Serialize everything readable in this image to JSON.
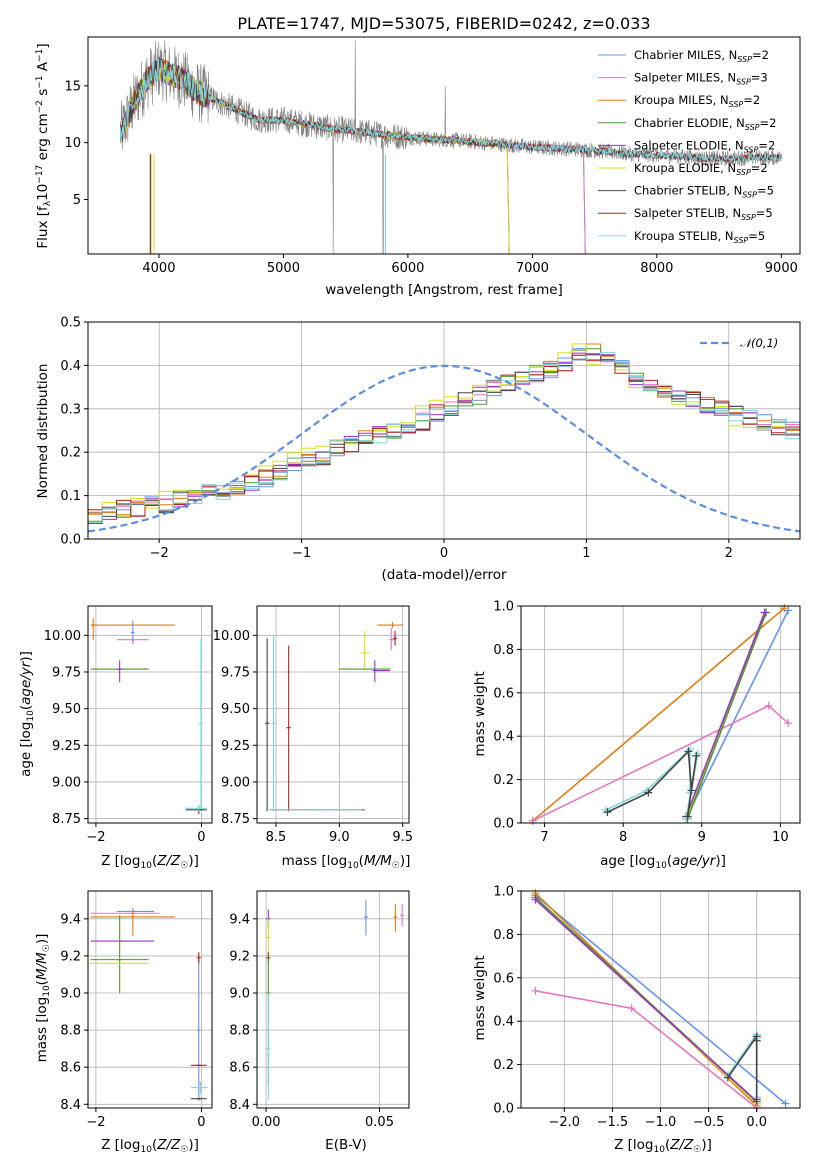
{
  "title": "PLATE=1747, MJD=53075, FIBERID=0242, z=0.033",
  "colors": {
    "chabrier_miles": "#6495ed",
    "salpeter_miles": "#e377c2",
    "kroupa_miles": "#e07b10",
    "chabrier_elodie": "#4e9a2c",
    "salpeter_elodie": "#9932cc",
    "kroupa_elodie": "#d4e21d",
    "chabrier_stelib": "#444444",
    "salpeter_stelib": "#b22222",
    "kroupa_stelib": "#7fd8dc",
    "data_gray": "#808080",
    "normal": "#5b8ee0"
  },
  "legend_main": [
    {
      "name": "Chabrier MILES",
      "n": "2",
      "color_key": "chabrier_miles"
    },
    {
      "name": "Salpeter MILES",
      "n": "3",
      "color_key": "salpeter_miles"
    },
    {
      "name": "Kroupa MILES",
      "n": "2",
      "color_key": "kroupa_miles"
    },
    {
      "name": "Chabrier ELODIE",
      "n": "2",
      "color_key": "chabrier_elodie"
    },
    {
      "name": "Salpeter ELODIE",
      "n": "2",
      "color_key": "salpeter_elodie"
    },
    {
      "name": "Kroupa ELODIE",
      "n": "2",
      "color_key": "kroupa_elodie"
    },
    {
      "name": "Chabrier STELIB",
      "n": "5",
      "color_key": "chabrier_stelib"
    },
    {
      "name": "Salpeter STELIB",
      "n": "5",
      "color_key": "salpeter_stelib"
    },
    {
      "name": "Kroupa STELIB",
      "n": "5",
      "color_key": "kroupa_stelib"
    }
  ],
  "chart_data": [
    {
      "id": "spectrum",
      "type": "line",
      "xlabel": "wavelength [Angstrom, rest frame]",
      "ylabel": "Flux [f_λ 10^-17 erg cm^-2 s^-1 A^-1]",
      "xlim": [
        3430,
        9150
      ],
      "ylim": [
        0.2,
        19.3
      ],
      "xticks": [
        4000,
        5000,
        6000,
        7000,
        8000,
        9000
      ],
      "yticks": [
        5,
        10,
        15
      ],
      "legend": "top-right",
      "data_continuum": {
        "x": [
          3700,
          3800,
          3900,
          4000,
          4100,
          4200,
          4300,
          4400,
          4600,
          4800,
          5000,
          5200,
          5400,
          5600,
          5800,
          6000,
          6200,
          6400,
          6600,
          6800,
          7000,
          7200,
          7400,
          7600,
          7800,
          8000,
          8200,
          8400,
          8600,
          8800,
          9000
        ],
        "y": [
          11.0,
          13.5,
          15.5,
          16.5,
          16.0,
          15.5,
          14.5,
          14.0,
          13.0,
          12.0,
          12.0,
          11.6,
          11.2,
          11.0,
          10.7,
          10.5,
          10.3,
          10.2,
          10.0,
          9.8,
          9.6,
          9.5,
          9.4,
          9.2,
          9.0,
          8.9,
          8.8,
          8.6,
          8.6,
          8.7,
          8.7
        ]
      },
      "model_end_wavelength": {
        "miles": 7410,
        "elodie": 6800,
        "stelib": 9000
      }
    },
    {
      "id": "residuals",
      "type": "histogram",
      "xlabel": "(data-model)/error",
      "ylabel": "Normed distribution",
      "xlim": [
        -2.5,
        2.5
      ],
      "ylim": [
        0,
        0.5
      ],
      "xticks": [
        -2,
        -1,
        0,
        1,
        2
      ],
      "yticks": [
        0.0,
        0.1,
        0.2,
        0.3,
        0.4,
        0.5
      ],
      "bin_width": 0.1,
      "bin_start": -2.5,
      "grid": true,
      "normal_label": "𝒩(0,1)",
      "base_hist": [
        0.05,
        0.06,
        0.07,
        0.07,
        0.08,
        0.08,
        0.09,
        0.1,
        0.11,
        0.11,
        0.12,
        0.13,
        0.14,
        0.15,
        0.17,
        0.18,
        0.19,
        0.21,
        0.22,
        0.23,
        0.24,
        0.25,
        0.26,
        0.27,
        0.29,
        0.3,
        0.32,
        0.33,
        0.35,
        0.36,
        0.37,
        0.38,
        0.39,
        0.4,
        0.42,
        0.43,
        0.42,
        0.4,
        0.37,
        0.35,
        0.34,
        0.33,
        0.32,
        0.31,
        0.3,
        0.29,
        0.28,
        0.27,
        0.26,
        0.25,
        0.24,
        0.22,
        0.21,
        0.2,
        0.18,
        0.17,
        0.16,
        0.15,
        0.13,
        0.12,
        0.11,
        0.1,
        0.09,
        0.08,
        0.07,
        0.06,
        0.05,
        0.05,
        0.04,
        0.04,
        0.03,
        0.03,
        0.03,
        0.03,
        0.03
      ]
    },
    {
      "id": "age_vs_Z",
      "type": "errorbar",
      "xlabel": "Z [log10(Z/Z☉)]",
      "ylabel": "age [log10(age/yr)]",
      "xlim": [
        -2.15,
        0.2
      ],
      "ylim": [
        8.72,
        10.2
      ],
      "xticks": [
        -2,
        0
      ],
      "yticks": [
        8.75,
        9.0,
        9.25,
        9.5,
        9.75,
        10.0
      ],
      "points": [
        {
          "c": "kroupa_miles",
          "x": -2.05,
          "xlo": -2.1,
          "xhi": -0.5,
          "y": 10.07,
          "ylo": 9.97,
          "yhi": 10.12
        },
        {
          "c": "salpeter_miles",
          "x": -1.3,
          "xlo": -1.6,
          "xhi": -1.0,
          "y": 9.97,
          "ylo": 9.95,
          "yhi": 9.99
        },
        {
          "c": "chabrier_miles",
          "x": -1.3,
          "xlo": -1.3,
          "xhi": -1.3,
          "y": 10.02,
          "ylo": 9.94,
          "yhi": 10.1
        },
        {
          "c": "kroupa_elodie",
          "x": -1.5,
          "xlo": -2.1,
          "xhi": -1.0,
          "y": 9.77,
          "ylo": 9.77,
          "yhi": 9.77
        },
        {
          "c": "chabrier_elodie",
          "x": -1.55,
          "xlo": -2.1,
          "xhi": -1.0,
          "y": 9.77,
          "ylo": 9.77,
          "yhi": 9.77
        },
        {
          "c": "salpeter_elodie",
          "x": -1.55,
          "xlo": -1.6,
          "xhi": -1.5,
          "y": 9.77,
          "ylo": 9.68,
          "yhi": 9.83
        },
        {
          "c": "kroupa_stelib",
          "x": -0.01,
          "xlo": -0.01,
          "xhi": -0.01,
          "y": 9.4,
          "ylo": 8.8,
          "yhi": 9.98
        },
        {
          "c": "chabrier_stelib",
          "x": -0.05,
          "xlo": -0.3,
          "xhi": 0.1,
          "y": 8.81,
          "ylo": 8.78,
          "yhi": 8.84
        },
        {
          "c": "kroupa_stelib",
          "x": -0.05,
          "xlo": -0.3,
          "xhi": 0.1,
          "y": 8.82,
          "ylo": 8.8,
          "yhi": 8.84
        }
      ]
    },
    {
      "id": "age_vs_mass",
      "type": "errorbar",
      "xlabel": "mass [log10(M/M☉)]",
      "ylabel": "",
      "xlim": [
        8.35,
        9.55
      ],
      "ylim": [
        8.72,
        10.2
      ],
      "xticks": [
        8.5,
        9.0,
        9.5
      ],
      "yticks": [
        8.75,
        9.0,
        9.25,
        9.5,
        9.75,
        10.0
      ],
      "points": [
        {
          "c": "chabrier_stelib",
          "x": 8.43,
          "xlo": 8.43,
          "xhi": 8.43,
          "y": 9.4,
          "ylo": 8.8,
          "yhi": 9.98
        },
        {
          "c": "kroupa_stelib",
          "x": 8.48,
          "xlo": 8.48,
          "xhi": 8.48,
          "y": 9.4,
          "ylo": 8.8,
          "yhi": 10.0
        },
        {
          "c": "salpeter_stelib",
          "x": 8.6,
          "xlo": 8.6,
          "xhi": 8.6,
          "y": 9.37,
          "ylo": 8.8,
          "yhi": 9.93
        },
        {
          "c": "salpeter_stelib",
          "x": 8.82,
          "xlo": 8.45,
          "xhi": 9.2,
          "y": 8.81,
          "ylo": 8.81,
          "yhi": 8.81
        },
        {
          "c": "kroupa_stelib",
          "x": 8.82,
          "xlo": 8.45,
          "xhi": 9.18,
          "y": 8.81,
          "ylo": 8.81,
          "yhi": 8.81
        },
        {
          "c": "chabrier_elodie",
          "x": 9.2,
          "xlo": 9.0,
          "xhi": 9.4,
          "y": 9.77,
          "ylo": 9.77,
          "yhi": 9.77
        },
        {
          "c": "kroupa_elodie",
          "x": 9.2,
          "xlo": 9.17,
          "xhi": 9.24,
          "y": 9.88,
          "ylo": 9.76,
          "yhi": 10.03
        },
        {
          "c": "salpeter_elodie",
          "x": 9.28,
          "xlo": 9.27,
          "xhi": 9.4,
          "y": 9.76,
          "ylo": 9.68,
          "yhi": 9.83
        },
        {
          "c": "kroupa_miles",
          "x": 9.42,
          "xlo": 9.3,
          "xhi": 9.5,
          "y": 10.07,
          "ylo": 10.05,
          "yhi": 10.09
        },
        {
          "c": "salpeter_miles",
          "x": 9.41,
          "xlo": 9.4,
          "xhi": 9.45,
          "y": 9.97,
          "ylo": 9.9,
          "yhi": 10.05
        },
        {
          "c": "salpeter_stelib",
          "x": 9.44,
          "xlo": 9.44,
          "xhi": 9.44,
          "y": 9.98,
          "ylo": 9.93,
          "yhi": 10.03
        }
      ]
    },
    {
      "id": "mass_vs_Z",
      "type": "errorbar",
      "xlabel": "Z [log10(Z/Z☉)]",
      "ylabel": "mass [log10(M/M☉)]",
      "xlim": [
        -2.15,
        0.2
      ],
      "ylim": [
        8.38,
        9.55
      ],
      "xticks": [
        -2,
        0
      ],
      "yticks": [
        8.4,
        8.6,
        8.8,
        9.0,
        9.2,
        9.4
      ],
      "points": [
        {
          "c": "kroupa_miles",
          "x": -1.3,
          "xlo": -2.1,
          "xhi": -0.5,
          "y": 9.41,
          "ylo": 9.31,
          "yhi": 9.46
        },
        {
          "c": "salpeter_miles",
          "x": -1.3,
          "xlo": -2.1,
          "xhi": -0.8,
          "y": 9.43,
          "ylo": 9.43,
          "yhi": 9.43
        },
        {
          "c": "chabrier_miles",
          "x": -1.3,
          "xlo": -1.6,
          "xhi": -0.9,
          "y": 9.44,
          "ylo": 9.44,
          "yhi": 9.44
        },
        {
          "c": "salpeter_elodie",
          "x": -1.5,
          "xlo": -2.1,
          "xhi": -0.9,
          "y": 9.28,
          "ylo": 9.28,
          "yhi": 9.28
        },
        {
          "c": "chabrier_elodie",
          "x": -1.55,
          "xlo": -2.1,
          "xhi": -1.0,
          "y": 9.18,
          "ylo": 9.0,
          "yhi": 9.42
        },
        {
          "c": "kroupa_elodie",
          "x": -1.6,
          "xlo": -2.1,
          "xhi": -1.0,
          "y": 9.16,
          "ylo": 9.16,
          "yhi": 9.16
        },
        {
          "c": "chabrier_miles",
          "x": -0.05,
          "xlo": -0.05,
          "xhi": -0.05,
          "y": 8.8,
          "ylo": 8.42,
          "yhi": 9.2
        },
        {
          "c": "salpeter_stelib",
          "x": -0.05,
          "xlo": -0.2,
          "xhi": 0.1,
          "y": 8.61,
          "ylo": 8.61,
          "yhi": 8.61
        },
        {
          "c": "salpeter_stelib",
          "x": -0.05,
          "xlo": -0.05,
          "xhi": -0.05,
          "y": 9.19,
          "ylo": 9.16,
          "yhi": 9.22
        },
        {
          "c": "kroupa_stelib",
          "x": -0.02,
          "xlo": -0.2,
          "xhi": 0.12,
          "y": 8.49,
          "ylo": 8.46,
          "yhi": 8.52
        },
        {
          "c": "chabrier_stelib",
          "x": -0.05,
          "xlo": -0.2,
          "xhi": 0.1,
          "y": 8.43,
          "ylo": 8.43,
          "yhi": 8.43
        }
      ]
    },
    {
      "id": "mass_vs_ebv",
      "type": "errorbar",
      "xlabel": "E(B-V)",
      "ylabel": "",
      "xlim": [
        -0.004,
        0.063
      ],
      "ylim": [
        8.38,
        9.55
      ],
      "xticks": [
        0.0,
        0.05
      ],
      "yticks": [
        8.4,
        8.6,
        8.8,
        9.0,
        9.2,
        9.4
      ],
      "points": [
        {
          "c": "salpeter_elodie",
          "x": 0.001,
          "xlo": 0.001,
          "xhi": 0.001,
          "y": 9.4,
          "ylo": 9.35,
          "yhi": 9.45
        },
        {
          "c": "kroupa_elodie",
          "x": 0.001,
          "xlo": 0.001,
          "xhi": 0.001,
          "y": 9.3,
          "ylo": 9.2,
          "yhi": 9.4
        },
        {
          "c": "salpeter_stelib",
          "x": 0.001,
          "xlo": 0.001,
          "xhi": 0.001,
          "y": 9.19,
          "ylo": 9.16,
          "yhi": 9.22
        },
        {
          "c": "chabrier_elodie",
          "x": 0.001,
          "xlo": 0.001,
          "xhi": 0.001,
          "y": 9.0,
          "ylo": 8.5,
          "yhi": 9.2
        },
        {
          "c": "kroupa_stelib",
          "x": 0.001,
          "xlo": 0.001,
          "xhi": 0.001,
          "y": 8.7,
          "ylo": 8.42,
          "yhi": 9.0
        },
        {
          "c": "chabrier_miles",
          "x": 0.044,
          "xlo": 0.044,
          "xhi": 0.044,
          "y": 9.41,
          "ylo": 9.31,
          "yhi": 9.5
        },
        {
          "c": "kroupa_miles",
          "x": 0.057,
          "xlo": 0.057,
          "xhi": 0.057,
          "y": 9.41,
          "ylo": 9.33,
          "yhi": 9.48
        },
        {
          "c": "salpeter_miles",
          "x": 0.06,
          "xlo": 0.06,
          "xhi": 0.06,
          "y": 9.42,
          "ylo": 9.36,
          "yhi": 9.48
        }
      ]
    },
    {
      "id": "weight_vs_age",
      "type": "line",
      "xlabel": "age [log10(age/yr)]",
      "ylabel": "mass weight",
      "xlim": [
        6.7,
        10.25
      ],
      "ylim": [
        0,
        1.0
      ],
      "xticks": [
        7,
        8,
        9,
        10
      ],
      "yticks": [
        0.0,
        0.2,
        0.4,
        0.6,
        0.8,
        1.0
      ],
      "series": [
        {
          "c": "kroupa_miles",
          "x": [
            6.85,
            10.05
          ],
          "y": [
            0.01,
            0.99
          ]
        },
        {
          "c": "chabrier_miles",
          "x": [
            8.8,
            10.1
          ],
          "y": [
            0.02,
            0.98
          ]
        },
        {
          "c": "salpeter_miles",
          "x": [
            6.85,
            9.85,
            10.1
          ],
          "y": [
            0.01,
            0.54,
            0.46
          ]
        },
        {
          "c": "kroupa_elodie",
          "x": [
            8.8,
            9.8
          ],
          "y": [
            0.02,
            0.97
          ]
        },
        {
          "c": "chabrier_elodie",
          "x": [
            8.82,
            9.82
          ],
          "y": [
            0.02,
            0.97
          ]
        },
        {
          "c": "salpeter_elodie",
          "x": [
            8.8,
            9.8
          ],
          "y": [
            0.03,
            0.97
          ]
        },
        {
          "c": "kroupa_stelib",
          "x": [
            7.78,
            8.3,
            8.85,
            8.85,
            8.95,
            8.8
          ],
          "y": [
            0.06,
            0.15,
            0.34,
            0.14,
            0.32,
            0.02
          ]
        },
        {
          "c": "chabrier_stelib",
          "x": [
            7.8,
            8.32,
            8.83,
            8.87,
            8.93,
            8.82
          ],
          "y": [
            0.05,
            0.14,
            0.33,
            0.15,
            0.31,
            0.03
          ]
        }
      ]
    },
    {
      "id": "weight_vs_Z",
      "type": "line",
      "xlabel": "Z [log10(Z/Z☉)]",
      "ylabel": "mass weight",
      "xlim": [
        -2.45,
        0.45
      ],
      "ylim": [
        0,
        1.0
      ],
      "xticks": [
        -2.0,
        -1.5,
        -1.0,
        -0.5,
        0.0
      ],
      "yticks": [
        0.0,
        0.2,
        0.4,
        0.6,
        0.8,
        1.0
      ],
      "series": [
        {
          "c": "chabrier_miles",
          "x": [
            -2.3,
            0.3
          ],
          "y": [
            0.98,
            0.02
          ]
        },
        {
          "c": "kroupa_miles",
          "x": [
            -2.3,
            0.0
          ],
          "y": [
            0.99,
            0.01
          ]
        },
        {
          "c": "salpeter_miles",
          "x": [
            -2.3,
            -1.3,
            0.0
          ],
          "y": [
            0.54,
            0.46,
            0.0
          ]
        },
        {
          "c": "kroupa_elodie",
          "x": [
            -2.3,
            0.0
          ],
          "y": [
            0.97,
            0.02
          ]
        },
        {
          "c": "chabrier_elodie",
          "x": [
            -2.3,
            0.0
          ],
          "y": [
            0.97,
            0.03
          ]
        },
        {
          "c": "salpeter_elodie",
          "x": [
            -2.3,
            0.0
          ],
          "y": [
            0.96,
            0.03
          ]
        },
        {
          "c": "kroupa_stelib",
          "x": [
            -0.3,
            0.0,
            0.0,
            0.0
          ],
          "y": [
            0.15,
            0.34,
            0.05,
            0.32
          ]
        },
        {
          "c": "chabrier_stelib",
          "x": [
            -0.3,
            0.0,
            0.0,
            0.0
          ],
          "y": [
            0.14,
            0.33,
            0.04,
            0.31
          ]
        }
      ]
    }
  ]
}
